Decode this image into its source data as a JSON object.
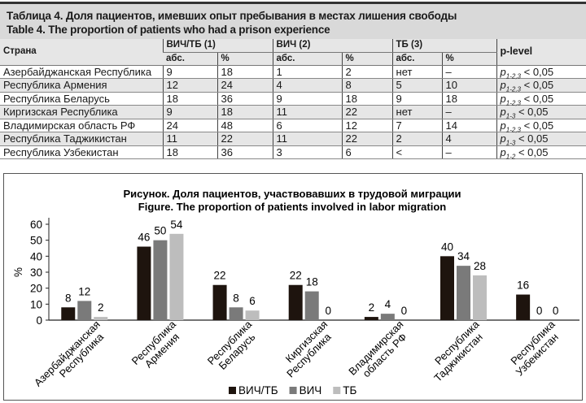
{
  "table": {
    "title_ru": "Таблица 4. Доля пациентов, имевших опыт пребывания в местах лишения свободы",
    "title_en": "Table 4. The proportion of patients who had a prison experience",
    "col_country": "Страна",
    "groups": [
      "ВИЧ/ТБ (1)",
      "ВИЧ (2)",
      "ТБ (3)"
    ],
    "sub_abs": "абс.",
    "sub_pct": "%",
    "col_p": "p-level",
    "rows": [
      {
        "country": "Азербайджанская Республика",
        "v": [
          "9",
          "18",
          "1",
          "2",
          "нет",
          "–"
        ],
        "p_sub": "1-2,3",
        "p_rest": " < 0,05"
      },
      {
        "country": "Республика Армения",
        "v": [
          "12",
          "24",
          "4",
          "8",
          "5",
          "10"
        ],
        "p_sub": "1-2,3",
        "p_rest": " < 0,05"
      },
      {
        "country": "Республика Беларусь",
        "v": [
          "18",
          "36",
          "9",
          "18",
          "9",
          "18"
        ],
        "p_sub": "1-2,3",
        "p_rest": " < 0,05"
      },
      {
        "country": "Киргизская Республика",
        "v": [
          "9",
          "18",
          "11",
          "22",
          "нет",
          "–"
        ],
        "p_sub": "1-3",
        "p_rest": " < 0,05"
      },
      {
        "country": "Владимирская область РФ",
        "v": [
          "24",
          "48",
          "6",
          "12",
          "7",
          "14"
        ],
        "p_sub": "1-2,3",
        "p_rest": " < 0,05"
      },
      {
        "country": "Республика Таджикистан",
        "v": [
          "11",
          "22",
          "11",
          "22",
          "2",
          "4"
        ],
        "p_sub": "1-3",
        "p_rest": " < 0,05"
      },
      {
        "country": "Республика Узбекистан",
        "v": [
          "18",
          "36",
          "3",
          "6",
          "<",
          "–"
        ],
        "p_sub": "1-2",
        "p_rest": " < 0,05"
      }
    ]
  },
  "chart_data": {
    "type": "bar",
    "title": "Рисунок. Доля пациентов, участвовавших в трудовой миграции",
    "subtitle": "Figure. The proportion of patients involved in labor migration",
    "ylabel": "%",
    "ylim": [
      0,
      60
    ],
    "yticks": [
      0,
      10,
      20,
      30,
      40,
      50,
      60
    ],
    "categories": [
      [
        "Азербайджанская",
        "Республика"
      ],
      [
        "Республика",
        "Армения"
      ],
      [
        "Республика",
        "Беларусь"
      ],
      [
        "Киргизская",
        "Республика"
      ],
      [
        "Владимирская",
        "область РФ"
      ],
      [
        "Республика",
        "Таджикистан"
      ],
      [
        "Республика",
        "Узбекистан"
      ]
    ],
    "series": [
      {
        "name": "ВИЧ/ТБ",
        "color": "#1e140e",
        "values": [
          8,
          46,
          22,
          22,
          2,
          40,
          16
        ]
      },
      {
        "name": "ВИЧ",
        "color": "#7a7a7a",
        "values": [
          12,
          50,
          8,
          18,
          4,
          34,
          0
        ]
      },
      {
        "name": "ТБ",
        "color": "#bdbdbd",
        "values": [
          2,
          54,
          6,
          0,
          0,
          28,
          0
        ]
      }
    ],
    "legend": "bottom-center",
    "grid": false
  }
}
